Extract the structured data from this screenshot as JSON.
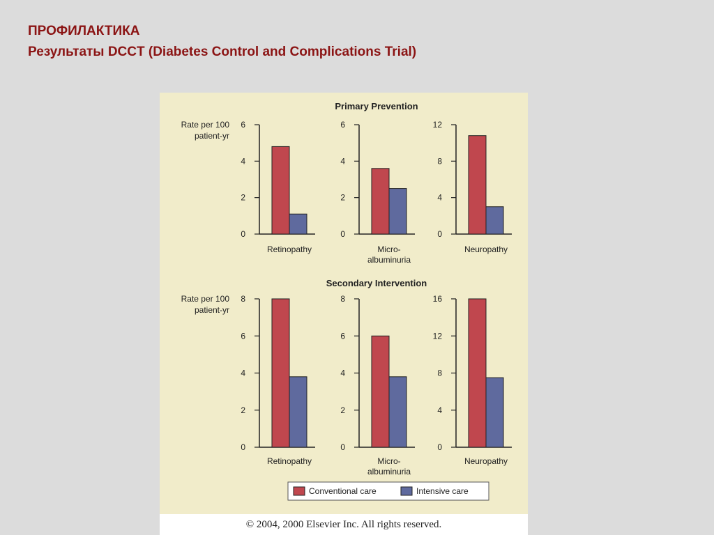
{
  "slide": {
    "title_line1": "ПРОФИЛАКТИКА",
    "title_line2": "Результаты DCCT (Diabetes Control and Complications Trial)"
  },
  "copyright": "© 2004, 2000 Elsevier Inc. All rights reserved.",
  "colors": {
    "conventional": "#c0474e",
    "intensive": "#5f6a9e",
    "background": "#f1ecca"
  },
  "chart_data": [
    {
      "type": "bar",
      "section": "Primary Prevention",
      "ylabel": "Rate per 100 patient-yr",
      "categories": [
        "Retinopathy"
      ],
      "ylim": [
        0,
        6
      ],
      "yticks": [
        "0",
        "2",
        "4",
        "6"
      ],
      "series": [
        {
          "name": "Conventional care",
          "values": [
            4.8
          ]
        },
        {
          "name": "Intensive care",
          "values": [
            1.1
          ]
        }
      ]
    },
    {
      "type": "bar",
      "section": "Primary Prevention",
      "categories": [
        "Micro- albuminuria"
      ],
      "ylim": [
        0,
        6
      ],
      "yticks": [
        "0",
        "2",
        "4",
        "6"
      ],
      "series": [
        {
          "name": "Conventional care",
          "values": [
            3.6
          ]
        },
        {
          "name": "Intensive care",
          "values": [
            2.5
          ]
        }
      ]
    },
    {
      "type": "bar",
      "section": "Primary Prevention",
      "categories": [
        "Neuropathy"
      ],
      "ylim": [
        0,
        12
      ],
      "yticks": [
        "0",
        "4",
        "8",
        "12"
      ],
      "series": [
        {
          "name": "Conventional care",
          "values": [
            10.8
          ]
        },
        {
          "name": "Intensive care",
          "values": [
            3.0
          ]
        }
      ]
    },
    {
      "type": "bar",
      "section": "Secondary Intervention",
      "ylabel": "Rate per 100 patient-yr",
      "categories": [
        "Retinopathy"
      ],
      "ylim": [
        0,
        8
      ],
      "yticks": [
        "0",
        "2",
        "4",
        "6",
        "8"
      ],
      "series": [
        {
          "name": "Conventional care",
          "values": [
            8.0
          ]
        },
        {
          "name": "Intensive care",
          "values": [
            3.8
          ]
        }
      ]
    },
    {
      "type": "bar",
      "section": "Secondary Intervention",
      "categories": [
        "Micro- albuminuria"
      ],
      "ylim": [
        0,
        8
      ],
      "yticks": [
        "0",
        "2",
        "4",
        "6",
        "8"
      ],
      "series": [
        {
          "name": "Conventional care",
          "values": [
            6.0
          ]
        },
        {
          "name": "Intensive care",
          "values": [
            3.8
          ]
        }
      ]
    },
    {
      "type": "bar",
      "section": "Secondary Intervention",
      "categories": [
        "Neuropathy"
      ],
      "ylim": [
        0,
        16
      ],
      "yticks": [
        "0",
        "4",
        "8",
        "12",
        "16"
      ],
      "series": [
        {
          "name": "Conventional care",
          "values": [
            16.0
          ]
        },
        {
          "name": "Intensive care",
          "values": [
            7.5
          ]
        }
      ]
    }
  ],
  "legend": [
    "Conventional care",
    "Intensive care"
  ]
}
